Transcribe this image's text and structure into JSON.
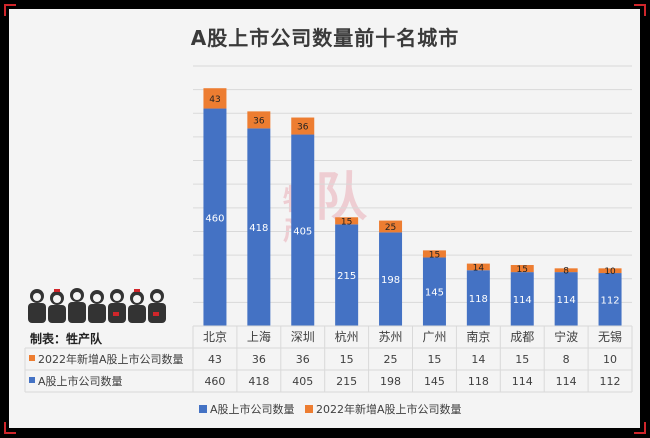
{
  "title": "A股上市公司数量前十名城市",
  "source": "制表：牲产队",
  "watermark": {
    "line1": "牲",
    "line2": "产",
    "big": "队"
  },
  "colors": {
    "series_a": "#4472c4",
    "series_b": "#ed7d31",
    "grid": "#d9d9d9",
    "text": "#404040"
  },
  "chart_data": {
    "type": "bar",
    "stacked": true,
    "categories": [
      "北京",
      "上海",
      "深圳",
      "杭州",
      "苏州",
      "广州",
      "南京",
      "成都",
      "宁波",
      "无锡"
    ],
    "series": [
      {
        "name": "A股上市公司数量",
        "values": [
          460,
          418,
          405,
          215,
          198,
          145,
          118,
          114,
          114,
          112
        ]
      },
      {
        "name": "2022年新增A股上市公司数量",
        "values": [
          43,
          36,
          36,
          15,
          25,
          15,
          14,
          15,
          8,
          10
        ]
      }
    ],
    "ylim": [
      0,
      550
    ],
    "grid": true,
    "legend_position": "bottom",
    "data_table": [
      {
        "name": "2022年新增A股上市公司数量",
        "values": [
          43,
          36,
          36,
          15,
          25,
          15,
          14,
          15,
          8,
          10
        ]
      },
      {
        "name": "A股上市公司数量",
        "values": [
          460,
          418,
          405,
          215,
          198,
          145,
          118,
          114,
          114,
          112
        ]
      }
    ],
    "legend": [
      {
        "label": "A股上市公司数量"
      },
      {
        "label": "2022年新增A股上市公司数量"
      }
    ]
  }
}
